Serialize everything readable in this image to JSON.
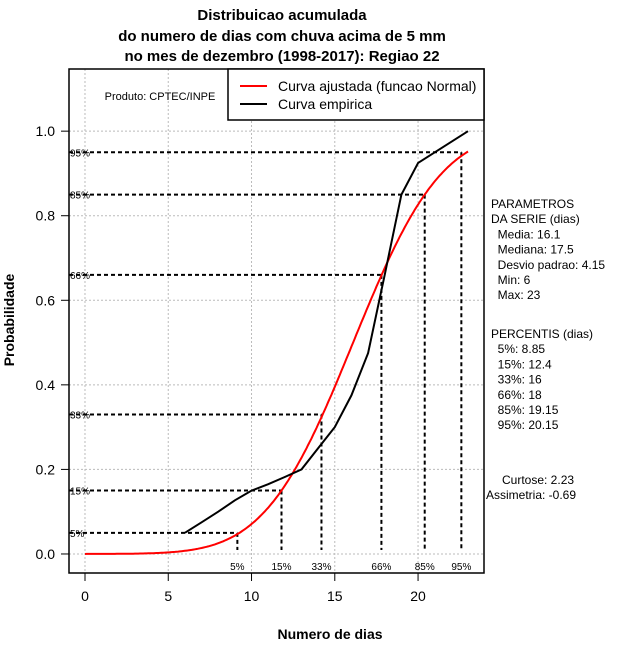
{
  "chart_data": {
    "type": "line",
    "title": [
      "Distribuicao acumulada",
      "do numero de dias com chuva acima de 5 mm",
      "no mes de dezembro (1998-2017): Regiao 22"
    ],
    "xlabel": "Numero de dias",
    "ylabel": "Probabilidade",
    "xlim": [
      -0.96,
      23.96
    ],
    "ylim": [
      -0.045,
      1.147
    ],
    "x_ticks": [
      0,
      5,
      10,
      15,
      20
    ],
    "y_ticks": [
      0.0,
      0.2,
      0.4,
      0.6,
      0.8,
      1.0
    ],
    "y_tick_labels": [
      "0.0",
      "0.2",
      "0.4",
      "0.6",
      "0.8",
      "1.0"
    ],
    "grid": true,
    "legend_position": "top-right",
    "series": [
      {
        "name": "Curva ajustada (funcao Normal)",
        "color": "#ff0000",
        "distribution": "normal",
        "mean": 16.1,
        "sd": 4.15,
        "x_range": [
          0,
          23
        ]
      },
      {
        "name": "Curva empirica",
        "color": "#000000",
        "points": [
          [
            6,
            0.05
          ],
          [
            7,
            0.075
          ],
          [
            8,
            0.1
          ],
          [
            9,
            0.127
          ],
          [
            10,
            0.15
          ],
          [
            11,
            0.165
          ],
          [
            12,
            0.182
          ],
          [
            13,
            0.2
          ],
          [
            14,
            0.25
          ],
          [
            15,
            0.3
          ],
          [
            16,
            0.375
          ],
          [
            17,
            0.475
          ],
          [
            18,
            0.66
          ],
          [
            19,
            0.85
          ],
          [
            20,
            0.925
          ],
          [
            23,
            1.0
          ]
        ]
      }
    ],
    "percentile_lines": [
      {
        "label": "5%",
        "p": 0.05,
        "x": 9.15
      },
      {
        "label": "15%",
        "p": 0.15,
        "x": 11.8
      },
      {
        "label": "33%",
        "p": 0.33,
        "x": 14.2
      },
      {
        "label": "66%",
        "p": 0.66,
        "x": 17.8
      },
      {
        "label": "85%",
        "p": 0.85,
        "x": 20.4
      },
      {
        "label": "95%",
        "p": 0.95,
        "x": 22.6
      }
    ],
    "annotations": {
      "product": "Produto: CPTEC/INPE",
      "params_lines": [
        "PARAMETROS",
        "DA SERIE (dias)",
        "  Media: 16.1",
        "  Mediana: 17.5",
        "  Desvio padrao: 4.15",
        "  Min: 6",
        "  Max: 23"
      ],
      "percentis_lines": [
        "PERCENTIS (dias)",
        "  5%: 8.85",
        "  15%: 12.4",
        "  33%: 16",
        "  66%: 18",
        "  85%: 19.15",
        "  95%: 20.15"
      ],
      "curtose": "Curtose: 2.23",
      "assimetria": "Assimetria: -0.69"
    }
  }
}
